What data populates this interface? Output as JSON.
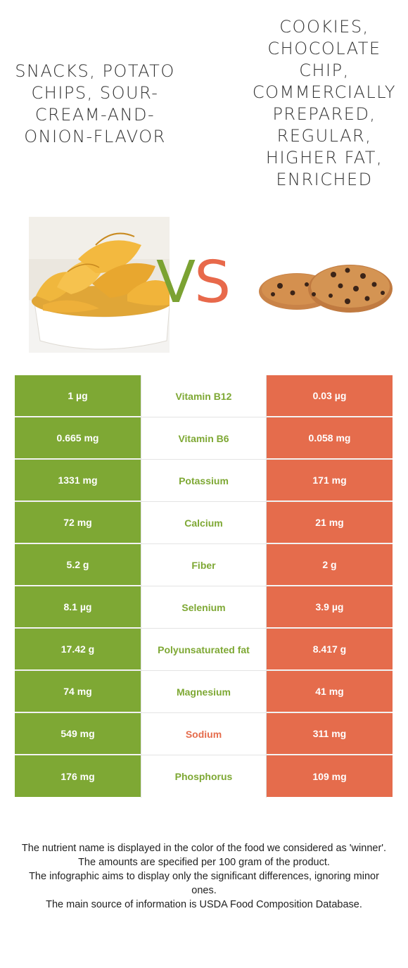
{
  "food_left": {
    "name": "Snacks, potato chips, sour-cream-and-onion-flavor",
    "color": "#7ea834",
    "image_icon": "potato-chips-bowl"
  },
  "food_right": {
    "name": "Cookies, chocolate chip, commercially prepared, regular, higher fat, enriched",
    "color": "#e56c4c",
    "image_icon": "chocolate-chip-cookies"
  },
  "vs": {
    "v": "V",
    "s": "S"
  },
  "nutrients": [
    {
      "left": "1 µg",
      "name": "Vitamin B12",
      "right": "0.03 µg",
      "winner": "left"
    },
    {
      "left": "0.665 mg",
      "name": "Vitamin B6",
      "right": "0.058 mg",
      "winner": "left"
    },
    {
      "left": "1331 mg",
      "name": "Potassium",
      "right": "171 mg",
      "winner": "left"
    },
    {
      "left": "72 mg",
      "name": "Calcium",
      "right": "21 mg",
      "winner": "left"
    },
    {
      "left": "5.2 g",
      "name": "Fiber",
      "right": "2 g",
      "winner": "left"
    },
    {
      "left": "8.1 µg",
      "name": "Selenium",
      "right": "3.9 µg",
      "winner": "left"
    },
    {
      "left": "17.42 g",
      "name": "Polyunsaturated fat",
      "right": "8.417 g",
      "winner": "left"
    },
    {
      "left": "74 mg",
      "name": "Magnesium",
      "right": "41 mg",
      "winner": "left"
    },
    {
      "left": "549 mg",
      "name": "Sodium",
      "right": "311 mg",
      "winner": "right"
    },
    {
      "left": "176 mg",
      "name": "Phosphorus",
      "right": "109 mg",
      "winner": "left"
    }
  ],
  "footer": {
    "line1": "The nutrient name is displayed in the color of the food we considered as 'winner'.",
    "line2": "The amounts are specified per 100 gram of the product.",
    "line3": "The infographic aims to display only the significant differences, ignoring minor ones.",
    "line4": "The main source of information is USDA Food Composition Database."
  }
}
